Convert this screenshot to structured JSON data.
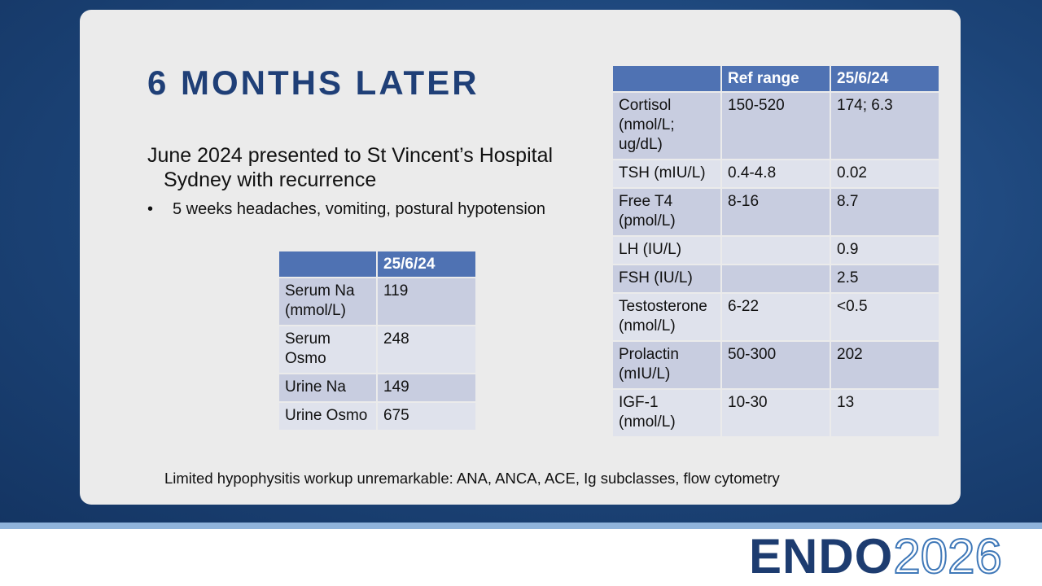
{
  "slide": {
    "title": "6 MONTHS LATER",
    "intro": "June 2024 presented to St Vincent’s Hospital Sydney with recurrence",
    "bullets": [
      "5 weeks headaches, vomiting, postural hypotension"
    ],
    "table_left": {
      "header": [
        null,
        "25/6/24"
      ],
      "rows": [
        [
          "Serum Na (mmol/L)",
          "119"
        ],
        [
          "Serum Osmo",
          "248"
        ],
        [
          "Urine Na",
          "149"
        ],
        [
          "Urine Osmo",
          "675"
        ]
      ]
    },
    "table_right": {
      "header": [
        null,
        "Ref range",
        "25/6/24"
      ],
      "rows": [
        [
          "Cortisol (nmol/L; ug/dL)",
          "150-520",
          "174; 6.3"
        ],
        [
          "TSH (mIU/L)",
          "0.4-4.8",
          "0.02"
        ],
        [
          "Free T4 (pmol/L)",
          "8-16",
          "8.7"
        ],
        [
          "LH (IU/L)",
          null,
          "0.9"
        ],
        [
          "FSH (IU/L)",
          null,
          "2.5"
        ],
        [
          "Testosterone (nmol/L)",
          "6-22",
          "<0.5"
        ],
        [
          "Prolactin (mIU/L)",
          "50-300",
          "202"
        ],
        [
          "IGF-1 (nmol/L)",
          "10-30",
          "13"
        ]
      ]
    },
    "footnote": "Limited hypophysitis workup unremarkable: ANA, ANCA, ACE, Ig subclasses, flow cytometry",
    "logo": {
      "brand": "ENDO",
      "year": "2026"
    }
  }
}
